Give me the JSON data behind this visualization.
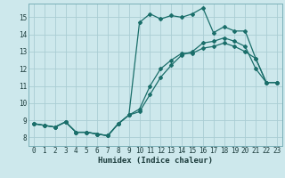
{
  "xlabel": "Humidex (Indice chaleur)",
  "bg_color": "#cde8ec",
  "grid_color": "#aacdd4",
  "line_color": "#1a6e6a",
  "xlim": [
    -0.5,
    23.5
  ],
  "ylim": [
    7.5,
    15.8
  ],
  "xticks": [
    0,
    1,
    2,
    3,
    4,
    5,
    6,
    7,
    8,
    9,
    10,
    11,
    12,
    13,
    14,
    15,
    16,
    17,
    18,
    19,
    20,
    21,
    22,
    23
  ],
  "yticks": [
    8,
    9,
    10,
    11,
    12,
    13,
    14,
    15
  ],
  "line1_x": [
    0,
    1,
    2,
    3,
    4,
    5,
    6,
    7,
    8,
    9,
    10,
    11,
    12,
    13,
    14,
    15,
    16,
    17,
    18,
    19,
    20,
    21,
    22,
    23
  ],
  "line1_y": [
    8.8,
    8.7,
    8.6,
    8.9,
    8.3,
    8.3,
    8.2,
    8.1,
    8.8,
    9.3,
    9.65,
    11.0,
    12.0,
    12.5,
    12.9,
    12.9,
    13.2,
    13.3,
    13.5,
    13.3,
    13.0,
    12.6,
    11.2,
    11.2
  ],
  "line2_x": [
    0,
    1,
    2,
    3,
    4,
    5,
    6,
    7,
    8,
    9,
    10,
    11,
    12,
    13,
    14,
    15,
    16,
    17,
    18,
    19,
    20,
    21,
    22,
    23
  ],
  "line2_y": [
    8.8,
    8.7,
    8.6,
    8.9,
    8.3,
    8.3,
    8.2,
    8.1,
    8.8,
    9.3,
    9.5,
    10.5,
    11.5,
    12.2,
    12.8,
    13.0,
    13.5,
    13.6,
    13.8,
    13.6,
    13.3,
    12.0,
    11.2,
    11.2
  ],
  "line3_x": [
    0,
    1,
    2,
    3,
    4,
    5,
    6,
    7,
    8,
    9,
    10,
    11,
    12,
    13,
    14,
    15,
    16,
    17,
    18,
    19,
    20,
    21,
    22,
    23
  ],
  "line3_y": [
    8.8,
    8.7,
    8.6,
    8.9,
    8.3,
    8.3,
    8.2,
    8.1,
    8.8,
    9.3,
    14.7,
    15.2,
    14.9,
    15.1,
    15.0,
    15.2,
    15.55,
    14.1,
    14.45,
    14.2,
    14.2,
    12.6,
    11.2,
    11.2
  ]
}
